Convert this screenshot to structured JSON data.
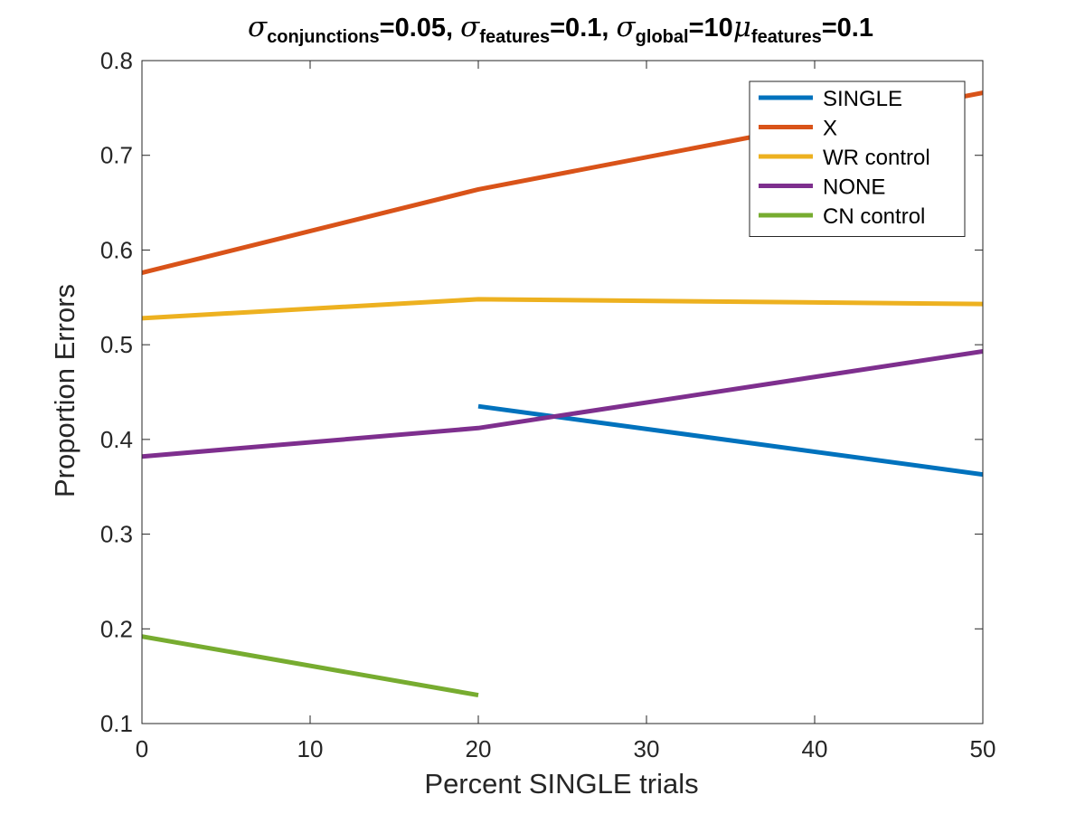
{
  "chart_data": {
    "type": "line",
    "title": {
      "parts": [
        {
          "kind": "greek",
          "text": "σ"
        },
        {
          "kind": "sub",
          "text": "conjunctions"
        },
        {
          "kind": "text",
          "text": "=0.05, "
        },
        {
          "kind": "greek",
          "text": "σ"
        },
        {
          "kind": "sub",
          "text": "features"
        },
        {
          "kind": "text",
          "text": "=0.1, "
        },
        {
          "kind": "greek",
          "text": "σ"
        },
        {
          "kind": "sub",
          "text": "global"
        },
        {
          "kind": "text",
          "text": "=10"
        },
        {
          "kind": "greek",
          "text": "μ"
        },
        {
          "kind": "sub",
          "text": "features"
        },
        {
          "kind": "text",
          "text": "=0.1"
        }
      ]
    },
    "xlabel": "Percent SINGLE trials",
    "ylabel": "Proportion Errors",
    "xlim": [
      0,
      50
    ],
    "ylim": [
      0.1,
      0.8
    ],
    "xticks": [
      0,
      10,
      20,
      30,
      40,
      50
    ],
    "yticks": [
      0.1,
      0.2,
      0.3,
      0.4,
      0.5,
      0.6,
      0.7,
      0.8
    ],
    "xtick_labels": [
      "0",
      "10",
      "20",
      "30",
      "40",
      "50"
    ],
    "ytick_labels": [
      "0.1",
      "0.2",
      "0.3",
      "0.4",
      "0.5",
      "0.6",
      "0.7",
      "0.8"
    ],
    "grid": false,
    "legend_position": "top-right",
    "series": [
      {
        "name": "SINGLE",
        "color": "#0072BD",
        "x": [
          20,
          50
        ],
        "y": [
          0.435,
          0.363
        ]
      },
      {
        "name": "X",
        "color": "#D95319",
        "x": [
          0,
          20,
          50
        ],
        "y": [
          0.576,
          0.664,
          0.766
        ]
      },
      {
        "name": "WR control",
        "color": "#EDB120",
        "x": [
          0,
          20,
          50
        ],
        "y": [
          0.528,
          0.548,
          0.543
        ]
      },
      {
        "name": "NONE",
        "color": "#7E2F8E",
        "x": [
          0,
          20,
          50
        ],
        "y": [
          0.382,
          0.412,
          0.493
        ]
      },
      {
        "name": "CN control",
        "color": "#77AC30",
        "x": [
          0,
          20
        ],
        "y": [
          0.192,
          0.13
        ]
      }
    ]
  }
}
